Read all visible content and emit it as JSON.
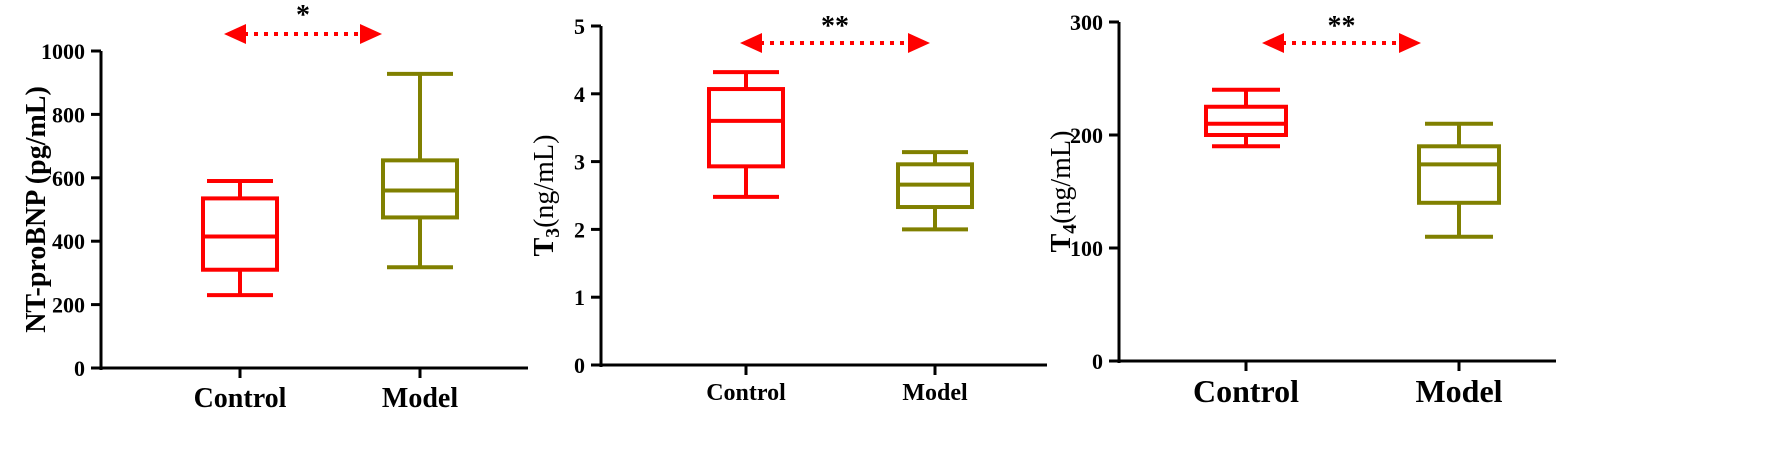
{
  "chart_data": [
    {
      "type": "box",
      "ylabel": "NT-proBNP (pg/mL)",
      "ylim": [
        0,
        1000
      ],
      "yticks": [
        0,
        200,
        400,
        600,
        800,
        1000
      ],
      "categories": [
        "Control",
        "Model"
      ],
      "boxes": [
        {
          "category": "Control",
          "min": 230,
          "q1": 310,
          "median": 415,
          "q3": 535,
          "max": 590,
          "color": "#ff0000"
        },
        {
          "category": "Model",
          "min": 318,
          "q1": 475,
          "median": 560,
          "q3": 655,
          "max": 928,
          "color": "#808000"
        }
      ],
      "significance": {
        "label": "*",
        "from": "Control",
        "to": "Model"
      }
    },
    {
      "type": "box",
      "ylabel": "T3(ng/mL)",
      "ylabel_main": "T",
      "ylabel_sub": "3",
      "ylabel_rest": "(ng/mL)",
      "ylim": [
        0,
        5
      ],
      "yticks": [
        0,
        1,
        2,
        3,
        4,
        5
      ],
      "categories": [
        "Control",
        "Model"
      ],
      "boxes": [
        {
          "category": "Control",
          "min": 2.48,
          "q1": 2.93,
          "median": 3.6,
          "q3": 4.07,
          "max": 4.32,
          "color": "#ff0000"
        },
        {
          "category": "Model",
          "min": 2.0,
          "q1": 2.33,
          "median": 2.66,
          "q3": 2.96,
          "max": 3.14,
          "color": "#808000"
        }
      ],
      "significance": {
        "label": "**",
        "from": "Control",
        "to": "Model"
      }
    },
    {
      "type": "box",
      "ylabel": "T4(ng/mL)",
      "ylabel_main": "T",
      "ylabel_sub": "4",
      "ylabel_rest": "(ng/mL)",
      "ylim": [
        0,
        300
      ],
      "yticks": [
        0,
        100,
        200,
        300
      ],
      "categories": [
        "Control",
        "Model"
      ],
      "boxes": [
        {
          "category": "Control",
          "min": 190,
          "q1": 200,
          "median": 210,
          "q3": 225,
          "max": 240,
          "color": "#ff0000"
        },
        {
          "category": "Model",
          "min": 110,
          "q1": 140,
          "median": 174,
          "q3": 190,
          "max": 210,
          "color": "#808000"
        }
      ],
      "significance": {
        "label": "**",
        "from": "Control",
        "to": "Model"
      }
    }
  ],
  "colors": {
    "control": "#ff0000",
    "model": "#808000",
    "arrow": "#ff0000"
  }
}
